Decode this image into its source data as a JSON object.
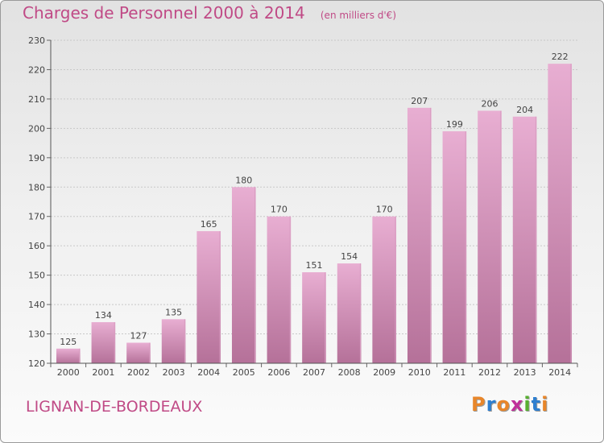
{
  "chart_data": {
    "type": "bar",
    "title": "Charges de Personnel 2000 à 2014",
    "subtitle": "(en milliers d'€)",
    "categories": [
      "2000",
      "2001",
      "2002",
      "2003",
      "2004",
      "2005",
      "2006",
      "2007",
      "2008",
      "2009",
      "2010",
      "2011",
      "2012",
      "2013",
      "2014"
    ],
    "values": [
      125,
      134,
      127,
      135,
      165,
      180,
      170,
      151,
      154,
      170,
      207,
      199,
      206,
      204,
      222
    ],
    "ylim": [
      120,
      230
    ],
    "yticks": [
      120,
      130,
      140,
      150,
      160,
      170,
      180,
      190,
      200,
      210,
      220,
      230
    ],
    "grid": true,
    "xlabel": "",
    "ylabel": ""
  },
  "footer": {
    "city": "LIGNAN-DE-BORDEAUX",
    "logo_letters": [
      "P",
      "r",
      "o",
      "x",
      "i",
      "t",
      "i"
    ],
    "logo_colors": [
      "#e8862a",
      "#2e7fd0",
      "#e8862a",
      "#c0309a",
      "#58b030",
      "#2e7fd0",
      "#e8862a"
    ]
  },
  "colors": {
    "bar_light": "#e8aed2",
    "bar_dark": "#b57199",
    "title": "#c04a86"
  }
}
